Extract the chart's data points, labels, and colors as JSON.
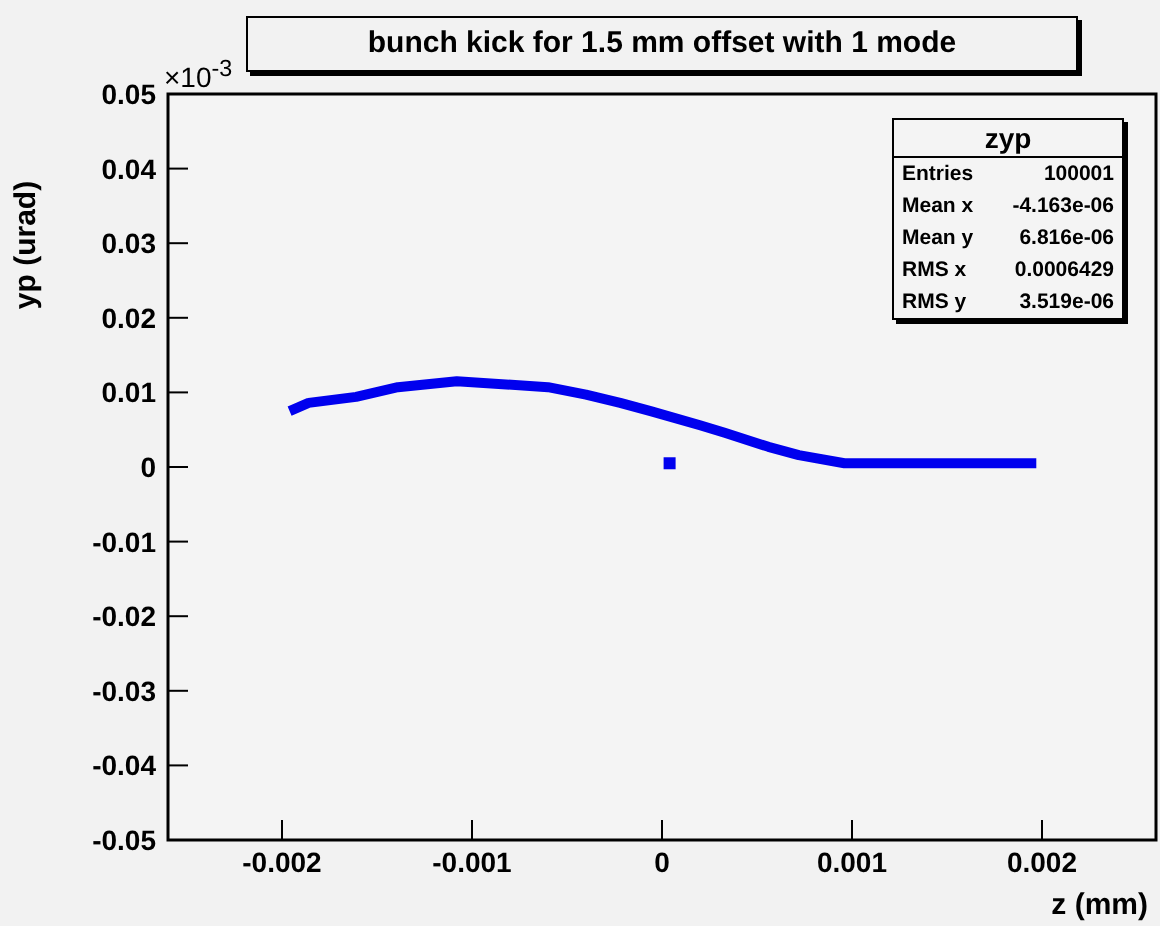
{
  "chart_data": {
    "type": "line",
    "title": "bunch kick for 1.5 mm offset with 1 mode",
    "xlabel": "z (mm)",
    "ylabel": "yp (urad)",
    "annotations": [
      "×10$^{-3}$",
      "zyp",
      "Entries",
      "100001",
      "Mean x",
      "-4.163e-06",
      "Mean y",
      "6.816e-06",
      "RMS x",
      "0.0006429",
      "RMS y",
      "3.519e-06"
    ],
    "xlim": [
      -0.0026,
      0.0026
    ],
    "xticks": [
      -0.002,
      -0.001,
      0,
      0.001,
      0.002
    ],
    "ylim": [
      -0.05,
      0.05
    ],
    "yticks": [
      -0.05,
      -0.04,
      -0.03,
      -0.02,
      -0.01,
      0,
      0.01,
      0.02,
      0.03,
      0.04,
      0.05
    ],
    "marker": "none",
    "series": [
      {
        "color": "#0000ee",
        "x": [
          -0.00196,
          -0.00186,
          -0.00161,
          -0.00139,
          -0.00108,
          -0.0006,
          -0.0004,
          -0.00022,
          -6e-05,
          0.0002,
          0.00033,
          0.00056,
          0.00072,
          0.00096,
          0.00197
        ],
        "values": [
          0.0075,
          0.0086,
          0.0094,
          0.0107,
          0.0115,
          0.0107,
          0.0097,
          0.0086,
          0.0075,
          0.0056,
          0.0046,
          0.0027,
          0.0016,
          0.0005,
          0.0005
        ]
      },
      {
        "type": "scatter",
        "marker": "square",
        "color": "#0000ee",
        "x": [
          4e-05
        ],
        "values": [
          0.0005
        ]
      }
    ]
  }
}
